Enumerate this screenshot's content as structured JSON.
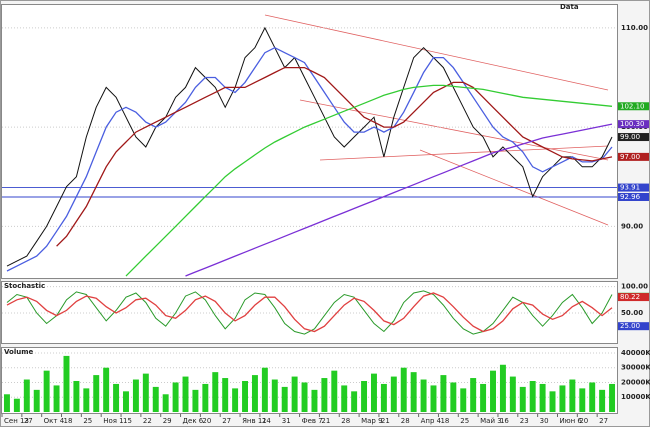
{
  "chart_data": [
    {
      "type": "line",
      "title": "Data",
      "ylim": [
        85,
        112
      ],
      "yticks": [
        {
          "value": 90,
          "label": "90.00"
        },
        {
          "value": 100,
          "label": "100.00"
        },
        {
          "value": 110,
          "label": "110.00"
        }
      ],
      "grid": true,
      "levels": [
        {
          "value": 93.91,
          "color": "#3344cc"
        },
        {
          "value": 92.96,
          "color": "#3344cc"
        }
      ],
      "markers": [
        {
          "value": 102.1,
          "label": "102.10",
          "color": "#22aa22"
        },
        {
          "value": 100.3,
          "label": "100.30",
          "color": "#6a2fc0"
        },
        {
          "value": 99,
          "label": "99.00",
          "color": "#222222"
        },
        {
          "value": 97,
          "label": "97.00",
          "color": "#b02020"
        }
      ],
      "series": [
        {
          "color": "#111111",
          "values": [
            86,
            86.5,
            87,
            88.5,
            90,
            92,
            94,
            95,
            99,
            102,
            104,
            103,
            101,
            99,
            98,
            100,
            101,
            103,
            104,
            106,
            105,
            104,
            102,
            104,
            107,
            108,
            110,
            108,
            106,
            107,
            105,
            103,
            101,
            99,
            98,
            99,
            100,
            101,
            97,
            101,
            104,
            107,
            108,
            107,
            106,
            104,
            102,
            100,
            99,
            97,
            98,
            97,
            96,
            93,
            95,
            96,
            97,
            97,
            96,
            96,
            97,
            99
          ]
        },
        {
          "color": "#4a5ee0",
          "values": [
            85.5,
            86,
            86.5,
            87,
            88,
            89.5,
            91,
            93,
            95,
            97.5,
            100,
            101.5,
            102,
            101.5,
            100.5,
            100,
            100.5,
            101.5,
            102.5,
            104,
            105,
            105,
            104,
            103.5,
            104.5,
            106,
            107.5,
            108,
            107.5,
            107,
            106.5,
            105,
            103.5,
            102,
            100.5,
            99.5,
            99.5,
            100,
            99.5,
            100,
            101.5,
            103.5,
            105.5,
            107,
            107,
            106,
            104.5,
            103,
            101.5,
            100,
            99,
            98.5,
            97.5,
            96,
            95.5,
            96,
            96.5,
            97,
            96.5,
            96.5,
            96.8,
            98
          ]
        },
        {
          "color": "#a01818",
          "values": [
            null,
            null,
            null,
            null,
            null,
            88,
            89,
            90.5,
            92,
            94,
            96,
            97.5,
            98.5,
            99.5,
            100,
            100.5,
            101,
            101.5,
            102,
            102.5,
            103,
            103.5,
            104,
            104,
            104,
            104.5,
            105,
            105.5,
            106,
            106,
            106,
            105.5,
            105,
            104,
            103,
            102,
            101,
            100.5,
            100,
            100,
            100.5,
            101.5,
            102.5,
            103.5,
            104,
            104.5,
            104.5,
            104,
            103,
            102,
            101,
            100,
            99,
            98.5,
            98,
            97.5,
            97,
            96.8,
            96.7,
            96.6,
            96.8,
            97
          ]
        },
        {
          "color": "#33cc33",
          "values": [
            null,
            null,
            null,
            null,
            null,
            null,
            null,
            null,
            null,
            null,
            null,
            null,
            85,
            86,
            87,
            88,
            89,
            90,
            91,
            92,
            93,
            94,
            95,
            95.8,
            96.5,
            97.2,
            97.9,
            98.5,
            99,
            99.5,
            100,
            100.4,
            100.8,
            101.2,
            101.6,
            102,
            102.4,
            102.8,
            103.2,
            103.5,
            103.8,
            104,
            104.1,
            104.2,
            104.2,
            104.1,
            104,
            103.9,
            103.8,
            103.6,
            103.4,
            103.2,
            103,
            102.9,
            102.8,
            102.7,
            102.6,
            102.5,
            102.4,
            102.3,
            102.2,
            102.1
          ]
        },
        {
          "color": "#7a2fd6",
          "values": [
            null,
            null,
            null,
            null,
            null,
            null,
            null,
            null,
            null,
            null,
            null,
            null,
            null,
            null,
            null,
            null,
            null,
            null,
            85,
            85.4,
            85.8,
            86.2,
            86.6,
            87,
            87.4,
            87.8,
            88.2,
            88.6,
            89,
            89.4,
            89.8,
            90.2,
            90.6,
            91,
            91.4,
            91.8,
            92.2,
            92.6,
            93,
            93.4,
            93.8,
            94.2,
            94.6,
            95,
            95.4,
            95.8,
            96.2,
            96.6,
            97,
            97.4,
            97.7,
            98,
            98.3,
            98.6,
            98.9,
            99.1,
            99.3,
            99.5,
            99.7,
            99.9,
            100.1,
            100.3
          ]
        }
      ]
    },
    {
      "type": "line",
      "title": "Stochastic",
      "ylim": [
        -5,
        105
      ],
      "yticks": [
        {
          "value": 50,
          "label": "50.00"
        },
        {
          "value": 100,
          "label": "100.00"
        }
      ],
      "grid": true,
      "markers": [
        {
          "value": 80.74,
          "color": "#22aa22"
        },
        {
          "value": 80.22,
          "color": "#d02a2a"
        },
        {
          "value": 25,
          "label": "25.00",
          "color": "#3344cc"
        }
      ],
      "series": [
        {
          "color": "#2a9a2a",
          "values": [
            70,
            85,
            80,
            50,
            30,
            45,
            75,
            90,
            85,
            60,
            35,
            55,
            80,
            88,
            70,
            40,
            25,
            50,
            82,
            90,
            75,
            45,
            20,
            40,
            75,
            88,
            85,
            60,
            30,
            15,
            10,
            20,
            45,
            70,
            85,
            80,
            55,
            30,
            15,
            35,
            70,
            88,
            92,
            85,
            65,
            40,
            20,
            10,
            15,
            30,
            55,
            80,
            70,
            45,
            25,
            45,
            70,
            85,
            60,
            30,
            50,
            85
          ]
        },
        {
          "color": "#e04040",
          "values": [
            65,
            75,
            80,
            72,
            55,
            45,
            55,
            72,
            82,
            78,
            62,
            50,
            60,
            75,
            78,
            65,
            45,
            40,
            55,
            75,
            82,
            72,
            50,
            35,
            45,
            65,
            80,
            80,
            62,
            38,
            20,
            15,
            25,
            45,
            65,
            78,
            72,
            55,
            35,
            28,
            40,
            62,
            82,
            88,
            80,
            62,
            42,
            25,
            15,
            20,
            35,
            58,
            70,
            65,
            48,
            38,
            45,
            62,
            72,
            60,
            45,
            60
          ]
        }
      ]
    },
    {
      "type": "bar",
      "title": "Volume",
      "ylim": [
        0,
        42000
      ],
      "color": "#22cc22",
      "yticks": [
        {
          "value": 10000,
          "label": "10000K"
        },
        {
          "value": 20000,
          "label": "20000K"
        },
        {
          "value": 30000,
          "label": "30000K"
        },
        {
          "value": 40000,
          "label": "40000K"
        }
      ],
      "grid": true,
      "categories": [
        "Сен 13",
        null,
        "27",
        null,
        "Окт 4",
        null,
        "18",
        null,
        "25",
        null,
        "Ноя 1",
        null,
        "15",
        null,
        "22",
        null,
        "29",
        null,
        "Дек 6",
        null,
        "20",
        null,
        "27",
        null,
        "Янв 11",
        null,
        "24",
        null,
        "31",
        null,
        "Фев 7",
        null,
        "21",
        null,
        "28",
        null,
        "Мар 9",
        null,
        "21",
        null,
        "28",
        null,
        "Апр 4",
        null,
        "18",
        null,
        "25",
        null,
        "Май 3",
        null,
        "16",
        null,
        "23",
        null,
        "30",
        null,
        "Июн 6",
        null,
        "20",
        null,
        "27",
        null
      ],
      "values": [
        12000,
        9000,
        22000,
        15000,
        28000,
        18000,
        38000,
        21000,
        16000,
        25000,
        30000,
        19000,
        14000,
        22000,
        26000,
        17000,
        12000,
        20000,
        24000,
        15000,
        19000,
        27000,
        23000,
        16000,
        21000,
        25000,
        30000,
        22000,
        17000,
        24000,
        20000,
        15000,
        23000,
        28000,
        18000,
        14000,
        21000,
        26000,
        19000,
        24000,
        30000,
        27000,
        22000,
        18000,
        25000,
        20000,
        16000,
        23000,
        19000,
        28000,
        32000,
        24000,
        17000,
        21000,
        19000,
        14000,
        18000,
        22000,
        16000,
        20000,
        15000,
        19000
      ]
    }
  ]
}
